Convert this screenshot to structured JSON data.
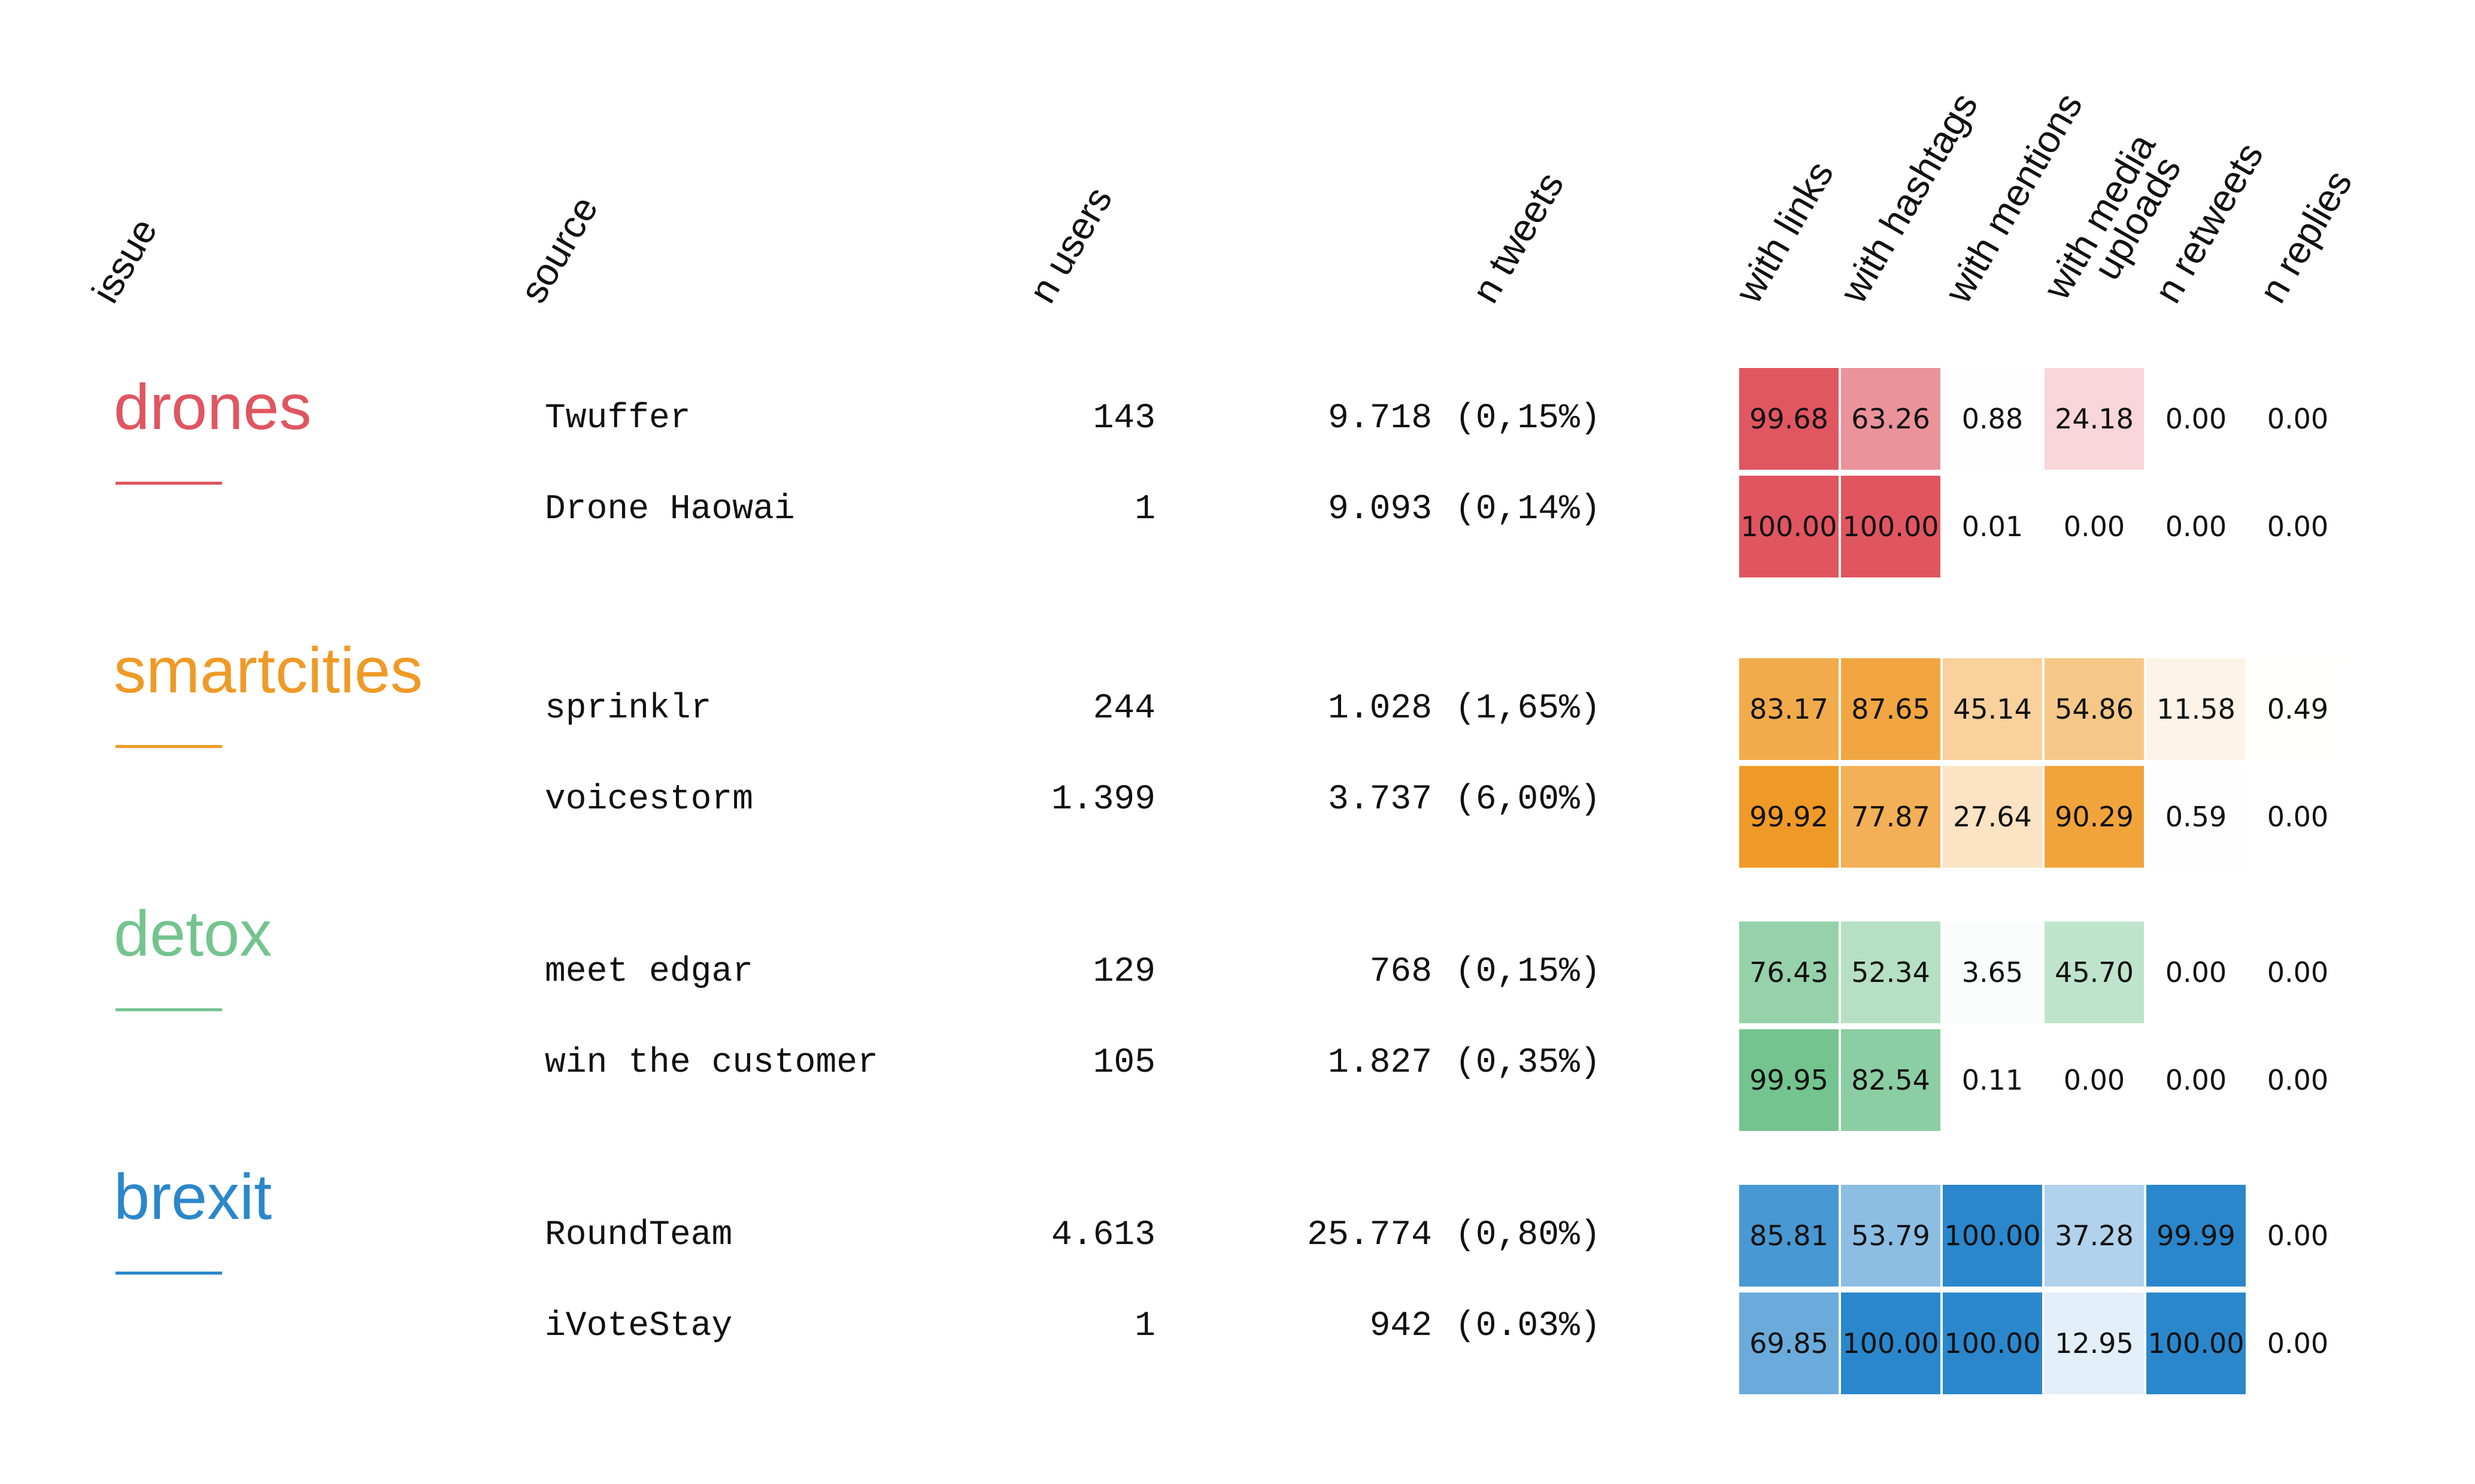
{
  "chart_data": {
    "type": "table",
    "headers": [
      "issue",
      "source",
      "n users",
      "n tweets",
      "with links",
      "with hashtags",
      "with mentions",
      "with media uploads",
      "n retweets",
      "n replies"
    ],
    "heat_columns": [
      "with links",
      "with hashtags",
      "with mentions",
      "with media uploads",
      "n retweets",
      "n replies"
    ],
    "groups": [
      {
        "issue": "drones",
        "color": "#e05560",
        "rows": [
          {
            "source": "Twuffer",
            "n_users": "143",
            "n_tweets": "9.718",
            "pct": "(0,15%)",
            "values": [
              "99.68",
              "63.26",
              "0.88",
              "24.18",
              "0.00",
              "0.00"
            ]
          },
          {
            "source": "Drone Haowai",
            "n_users": "1",
            "n_tweets": "9.093",
            "pct": "(0,14%)",
            "values": [
              "100.00",
              "100.00",
              "0.01",
              "0.00",
              "0.00",
              "0.00"
            ]
          }
        ]
      },
      {
        "issue": "smartcities",
        "color": "#ef9a26",
        "rows": [
          {
            "source": "sprinklr",
            "n_users": "244",
            "n_tweets": "1.028",
            "pct": "(1,65%)",
            "values": [
              "83.17",
              "87.65",
              "45.14",
              "54.86",
              "11.58",
              "0.49"
            ]
          },
          {
            "source": "voicestorm",
            "n_users": "1.399",
            "n_tweets": "3.737",
            "pct": "(6,00%)",
            "values": [
              "99.92",
              "77.87",
              "27.64",
              "90.29",
              "0.59",
              "0.00"
            ]
          }
        ]
      },
      {
        "issue": "detox",
        "color": "#74c48f",
        "rows": [
          {
            "source": "meet edgar",
            "n_users": "129",
            "n_tweets": "768",
            "pct": "(0,15%)",
            "values": [
              "76.43",
              "52.34",
              "3.65",
              "45.70",
              "0.00",
              "0.00"
            ]
          },
          {
            "source": "win the customer",
            "n_users": "105",
            "n_tweets": "1.827",
            "pct": "(0,35%)",
            "values": [
              "99.95",
              "82.54",
              "0.11",
              "0.00",
              "0.00",
              "0.00"
            ]
          }
        ]
      },
      {
        "issue": "brexit",
        "color": "#2a87cc",
        "rows": [
          {
            "source": "RoundTeam",
            "n_users": "4.613",
            "n_tweets": "25.774",
            "pct": "(0,80%)",
            "values": [
              "85.81",
              "53.79",
              "100.00",
              "37.28",
              "99.99",
              "0.00"
            ]
          },
          {
            "source": "iVoteStay",
            "n_users": "1",
            "n_tweets": "942",
            "pct": "(0.03%)",
            "values": [
              "69.85",
              "100.00",
              "100.00",
              "12.95",
              "100.00",
              "0.00"
            ]
          }
        ]
      }
    ],
    "value_range": [
      0,
      100
    ]
  }
}
